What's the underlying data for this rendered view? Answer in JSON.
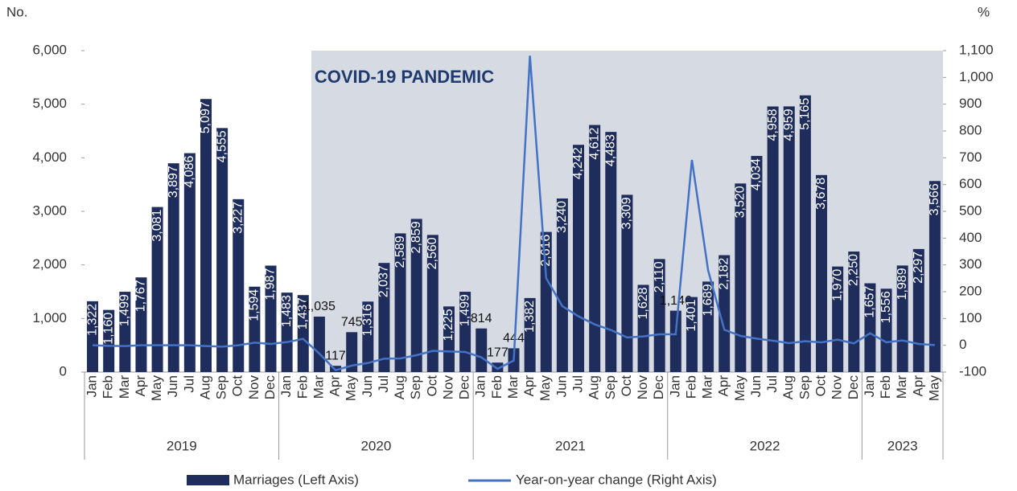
{
  "chart_data": {
    "type": "bar-line",
    "y_axis_label": "No.",
    "y2_axis_label": "%",
    "annotation": "COVID-19 PANDEMIC",
    "categories": [
      "Jan",
      "Feb",
      "Mar",
      "Apr",
      "May",
      "Jun",
      "Jul",
      "Aug",
      "Sep",
      "Oct",
      "Nov",
      "Dec",
      "Jan",
      "Feb",
      "Mar",
      "Apr",
      "May",
      "Jun",
      "Jul",
      "Aug",
      "Sep",
      "Oct",
      "Nov",
      "Dec",
      "Jan",
      "Feb",
      "Mar",
      "Apr",
      "May",
      "Jun",
      "Jul",
      "Aug",
      "Sep",
      "Oct",
      "Nov",
      "Dec",
      "Jan",
      "Feb",
      "Mar",
      "Apr",
      "May",
      "Jun",
      "Jul",
      "Aug",
      "Sep",
      "Oct",
      "Nov",
      "Dec",
      "Jan",
      "Feb",
      "Mar",
      "Apr",
      "May"
    ],
    "groups": [
      "2019",
      "2020",
      "2021",
      "2022",
      "2023"
    ],
    "series": [
      {
        "name": "Marriages (Left Axis)",
        "type": "bar",
        "color": "#1f2d5c",
        "values": [
          1322,
          1160,
          1499,
          1767,
          3081,
          3897,
          4086,
          5097,
          4555,
          3227,
          1594,
          1987,
          1483,
          1437,
          1035,
          117,
          745,
          1316,
          2037,
          2589,
          2859,
          2560,
          1225,
          1499,
          814,
          177,
          444,
          1382,
          2616,
          3240,
          4242,
          4612,
          4483,
          3309,
          1628,
          2110,
          1146,
          1401,
          1689,
          2182,
          3520,
          4034,
          4958,
          4959,
          5165,
          3678,
          1970,
          2250,
          1657,
          1556,
          1989,
          2297,
          3566
        ],
        "value_labels": [
          "1,322",
          "1,160",
          "1,499",
          "1,767",
          "3,081",
          "3,897",
          "4,086",
          "5,097",
          "4,555",
          "3,227",
          "1,594",
          "1,987",
          "1,483",
          "1,437",
          "1,035",
          "117",
          "745",
          "1,316",
          "2,037",
          "2,589",
          "2,859",
          "2,560",
          "1,225",
          "1,499",
          "814",
          "177",
          "444",
          "1,382",
          "2,616",
          "3,240",
          "4,242",
          "4,612",
          "4,483",
          "3,309",
          "1,628",
          "2,110",
          "1,146",
          "1,401",
          "1,689",
          "2,182",
          "3,520",
          "4,034",
          "4,958",
          "4,959",
          "5,165",
          "3,678",
          "1,970",
          "2,250",
          "1,657",
          "1,556",
          "1,989",
          "2,297",
          "3,566"
        ]
      },
      {
        "name": "Year-on-year change (Right Axis)",
        "type": "line",
        "axis": "y2",
        "color": "#4472c4",
        "values": [
          0,
          -2,
          -3,
          0,
          0,
          0,
          0,
          -3,
          -5,
          0,
          10,
          5,
          12,
          24,
          -31,
          -93,
          -76,
          -66,
          -50,
          -49,
          -37,
          -21,
          -23,
          -25,
          -45,
          -88,
          -57,
          1081,
          251,
          146,
          108,
          78,
          57,
          29,
          33,
          41,
          41,
          692,
          280,
          58,
          35,
          25,
          17,
          8,
          15,
          11,
          21,
          7,
          45,
          11,
          18,
          5,
          1
        ]
      }
    ],
    "ylim": [
      0,
      6000
    ],
    "yticks": [
      0,
      {
        "value": 1000,
        "label": "1,000"
      },
      {
        "value": 2000,
        "label": "2,000"
      },
      {
        "value": 3000,
        "label": "3,000"
      },
      {
        "value": 4000,
        "label": "4,000"
      },
      {
        "value": 5000,
        "label": "5,000"
      },
      {
        "value": 6000,
        "label": "6,000"
      }
    ],
    "y2lim": [
      -100,
      1100
    ],
    "y2ticks": [
      -100,
      0,
      100,
      200,
      300,
      400,
      500,
      600,
      700,
      800,
      900,
      {
        "value": 1000,
        "label": "1,000"
      },
      {
        "value": 1100,
        "label": "1,100"
      }
    ]
  }
}
